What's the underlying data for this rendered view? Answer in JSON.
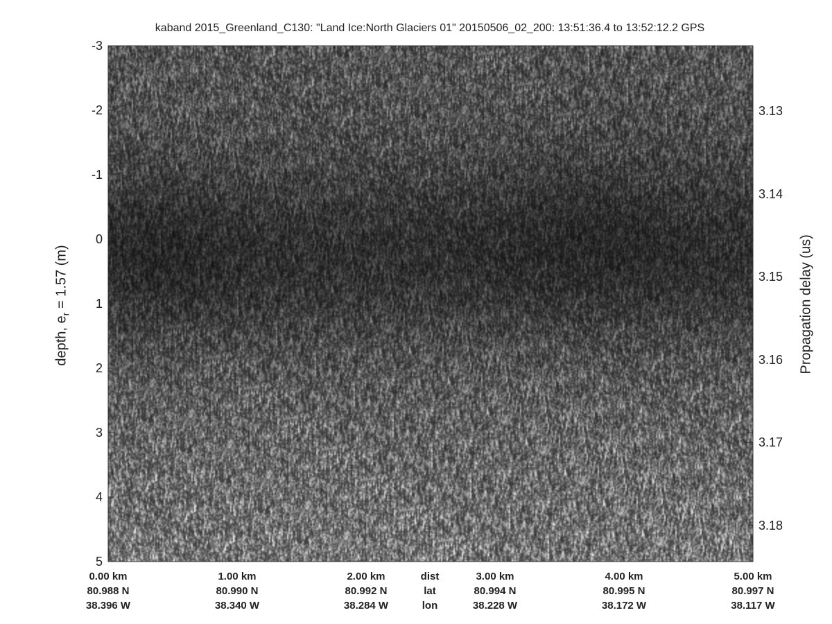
{
  "chart_data": {
    "type": "heatmap",
    "title": "kaband 2015_Greenland_C130: \"Land Ice:North Glaciers 01\"  20150506_02_200: 13:51:36.4 to 13:52:12.2 GPS",
    "ylabel_left": "depth, e",
    "ylabel_left_sub": "r",
    "ylabel_left_rest": " = 1.57 (m)",
    "ylabel_right": "Propagation delay (us)",
    "ylim_left": [
      -3,
      5
    ],
    "yticks_left": [
      "-3",
      "-2",
      "-1",
      "0",
      "1",
      "2",
      "3",
      "4",
      "5"
    ],
    "yticks_right": [
      "3.13",
      "3.14",
      "3.15",
      "3.16",
      "3.17",
      "3.18"
    ],
    "yticks_right_values": [
      3.13,
      3.14,
      3.15,
      3.16,
      3.17,
      3.18
    ],
    "xlim_km": [
      0,
      5
    ],
    "colormap": "gray",
    "x_ticks": [
      {
        "km": 0,
        "dist": "0.00 km",
        "lat": "80.988 N",
        "lon": "38.396 W"
      },
      {
        "km": 1,
        "dist": "1.00 km",
        "lat": "80.990 N",
        "lon": "38.340 W"
      },
      {
        "km": 2,
        "dist": "2.00 km",
        "lat": "80.992 N",
        "lon": "38.284 W"
      },
      {
        "km": 3,
        "dist": "3.00 km",
        "lat": "80.994 N",
        "lon": "38.228 W"
      },
      {
        "km": 4,
        "dist": "4.00 km",
        "lat": "80.995 N",
        "lon": "38.172 W"
      },
      {
        "km": 5,
        "dist": "5.00 km",
        "lat": "80.997 N",
        "lon": "38.117 W"
      }
    ],
    "row_labels": {
      "dist": "dist",
      "lat": "lat",
      "lon": "lon"
    }
  }
}
